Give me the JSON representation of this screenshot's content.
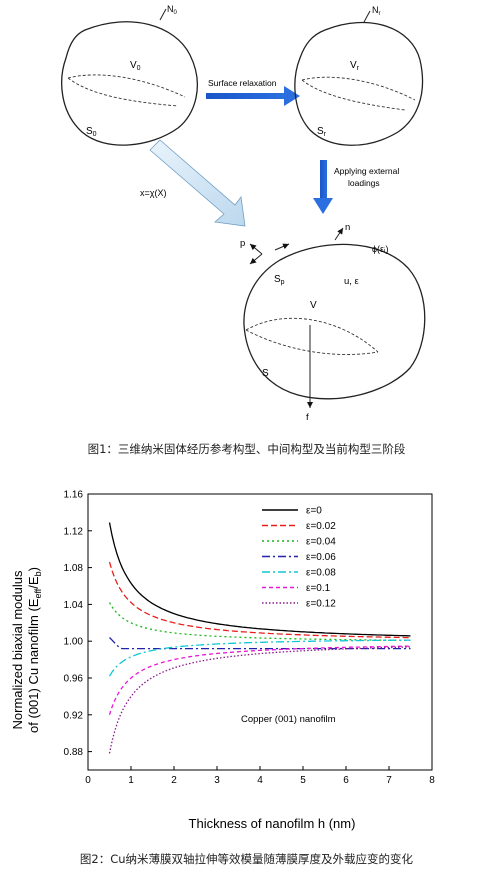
{
  "figure1": {
    "caption": "图1：三维纳米固体经历参考构型、中间构型及当前构型三阶段",
    "labels": {
      "N0": "N",
      "N0_sub": "0",
      "V0": "V",
      "V0_sub": "0",
      "S0": "S",
      "S0_sub": "0",
      "Nr": "N",
      "Nr_sub": "r",
      "Vr": "V",
      "Vr_sub": "r",
      "Sr": "S",
      "Sr_sub": "r",
      "surface_relaxation": "Surface relaxation",
      "applying_line1": "Applying external",
      "applying_line2": "loadings",
      "mapping": "x=χ(X)",
      "n": "n",
      "p": "p",
      "Sp": "S",
      "Sp_sub": "p",
      "phi": "ϕ(εᵢ)",
      "u_eps": "u, ε",
      "V": "V",
      "S": "S",
      "f": "f"
    }
  },
  "figure2": {
    "caption": "图2：Cu纳米薄膜双轴拉伸等效模量随薄膜厚度及外载应变的变化",
    "annotation": "Copper (001) nanofilm",
    "chart_data": {
      "type": "line",
      "xlabel": "Thickness of nanofilm  h  (nm)",
      "ylabel_line1": "Normalized biaxial modulus",
      "ylabel_line2": "of (001) Cu nanofilm (E",
      "ylabel_sub1": "eff",
      "ylabel_mid": "/E",
      "ylabel_sub2": "b",
      "ylabel_end": ")",
      "xlim": [
        0,
        8
      ],
      "ylim": [
        0.86,
        1.16
      ],
      "xticks": [
        "0",
        "1",
        "2",
        "3",
        "4",
        "5",
        "6",
        "7",
        "8"
      ],
      "yticks": [
        "0.88",
        "0.92",
        "0.96",
        "1.00",
        "1.04",
        "1.08",
        "1.12",
        "1.16"
      ],
      "legend_position": "top-right",
      "series": [
        {
          "name": "ε=0",
          "color": "#000000",
          "dash": "",
          "a": 0.997,
          "b": 0.066
        },
        {
          "name": "ε=0.02",
          "color": "#e8201c",
          "dash": "6,3",
          "a": 0.998,
          "b": 0.044
        },
        {
          "name": "ε=0.04",
          "color": "#15b815",
          "dash": "2,3",
          "a": 0.998,
          "b": 0.022
        },
        {
          "name": "ε=0.06",
          "color": "#2222aa",
          "dash": "8,3,2,3",
          "a": 0.992,
          "b": 0.0
        },
        {
          "name": "ε=0.08",
          "color": "#11c7d6",
          "dash": "8,3,2,3",
          "a": 1.004,
          "b": -0.021
        },
        {
          "name": "ε=0.1",
          "color": "#e61ad6",
          "dash": "4,3",
          "a": 1.0,
          "b": -0.04
        },
        {
          "name": "ε=0.12",
          "color": "#8a1a8a",
          "dash": "1.5,2",
          "a": 1.002,
          "b": -0.062
        }
      ],
      "x_range": [
        0.5,
        7.5
      ]
    }
  }
}
